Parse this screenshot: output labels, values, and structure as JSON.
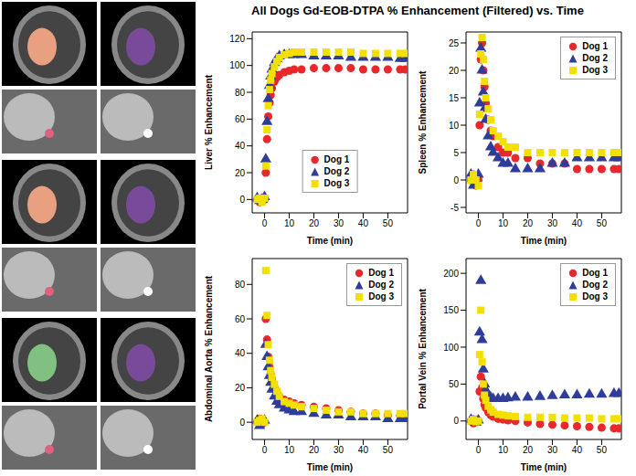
{
  "title": "All Dogs Gd-EOB-DTPA % Enhancement (Filtered) vs. Time",
  "chart_data": [
    {
      "type": "scatter",
      "ylabel": "Liver % Enhancement",
      "xlabel": "Time (min)",
      "legend": "lower center",
      "x": [
        -3,
        -2,
        -1,
        0,
        0.5,
        1,
        1.5,
        2,
        2.5,
        3,
        4,
        5,
        6,
        8,
        10,
        12,
        15,
        20,
        25,
        30,
        35,
        40,
        45,
        50,
        55,
        57
      ],
      "xlim": [
        -5,
        58
      ],
      "xticks": [
        0,
        10,
        20,
        30,
        40,
        50
      ],
      "ylim": [
        -10,
        125
      ],
      "yticks": [
        0,
        20,
        40,
        60,
        80,
        100,
        120
      ],
      "series": [
        {
          "name": "Dog 1",
          "color": "#e8282a",
          "marker": "circle",
          "values": [
            0,
            -2,
            1,
            0,
            20,
            45,
            62,
            72,
            78,
            83,
            88,
            91,
            93,
            95,
            96,
            97,
            97,
            98,
            98,
            98,
            98,
            97,
            97,
            97,
            97,
            97
          ]
        },
        {
          "name": "Dog 2",
          "color": "#2e3d9c",
          "marker": "triangle",
          "values": [
            1,
            -1,
            0,
            2,
            30,
            58,
            75,
            85,
            92,
            97,
            102,
            105,
            107,
            108,
            108,
            108,
            108,
            107,
            107,
            107,
            106,
            106,
            106,
            106,
            105,
            105
          ]
        },
        {
          "name": "Dog 3",
          "color": "#f2e000",
          "marker": "square",
          "values": [
            0,
            1,
            -2,
            1,
            25,
            52,
            70,
            82,
            89,
            94,
            99,
            103,
            106,
            108,
            109,
            110,
            110,
            110,
            110,
            110,
            110,
            109,
            109,
            109,
            109,
            109
          ]
        }
      ]
    },
    {
      "type": "scatter",
      "ylabel": "Spleen % Enhancement",
      "xlabel": "Time (min)",
      "legend": "upper right",
      "x": [
        -3,
        -2,
        -1,
        0,
        0.5,
        1,
        1.5,
        2,
        2.5,
        3,
        4,
        5,
        6,
        8,
        10,
        12,
        15,
        20,
        25,
        30,
        35,
        40,
        45,
        50,
        55,
        57
      ],
      "xlim": [
        -5,
        58
      ],
      "xticks": [
        0,
        10,
        20,
        30,
        40,
        50
      ],
      "ylim": [
        -6,
        27
      ],
      "yticks": [
        -5,
        0,
        5,
        10,
        15,
        20,
        25
      ],
      "series": [
        {
          "name": "Dog 1",
          "color": "#e8282a",
          "marker": "circle",
          "values": [
            0,
            1,
            -1,
            0,
            10,
            22,
            25,
            20,
            17,
            14,
            11,
            9,
            8,
            6,
            5,
            5,
            4,
            4,
            3,
            3,
            3,
            2,
            2,
            2,
            2,
            2
          ]
        },
        {
          "name": "Dog 2",
          "color": "#2e3d9c",
          "marker": "triangle",
          "values": [
            1,
            -1,
            0,
            1,
            14,
            24,
            20,
            16,
            13,
            11,
            8,
            6,
            5,
            4,
            3,
            3,
            2,
            2,
            2,
            3,
            3,
            4,
            4,
            4,
            4,
            4
          ]
        },
        {
          "name": "Dog 3",
          "color": "#f2e000",
          "marker": "square",
          "values": [
            0,
            1,
            0,
            -1,
            12,
            23,
            26,
            22,
            18,
            15,
            13,
            11,
            9,
            8,
            7,
            6,
            6,
            5,
            5,
            5,
            5,
            5,
            5,
            5,
            5,
            5
          ]
        }
      ]
    },
    {
      "type": "scatter",
      "ylabel": "Abdominal Aorta % Enhancement",
      "xlabel": "Time (min)",
      "legend": "upper right",
      "x": [
        -3,
        -2,
        -1,
        0,
        0.5,
        1,
        1.5,
        2,
        2.5,
        3,
        4,
        5,
        6,
        8,
        10,
        12,
        15,
        20,
        25,
        30,
        35,
        40,
        45,
        50,
        55,
        57
      ],
      "xlim": [
        -5,
        58
      ],
      "xticks": [
        0,
        10,
        20,
        30,
        40,
        50
      ],
      "ylim": [
        -10,
        95
      ],
      "yticks": [
        0,
        20,
        40,
        60,
        80
      ],
      "series": [
        {
          "name": "Dog 1",
          "color": "#e8282a",
          "marker": "circle",
          "values": [
            0,
            2,
            -1,
            0,
            60,
            48,
            38,
            32,
            28,
            25,
            20,
            17,
            15,
            13,
            12,
            11,
            10,
            9,
            8,
            7,
            6,
            5,
            5,
            4,
            4,
            4
          ]
        },
        {
          "name": "Dog 2",
          "color": "#2e3d9c",
          "marker": "triangle",
          "values": [
            1,
            -2,
            0,
            1,
            45,
            38,
            32,
            27,
            23,
            19,
            15,
            12,
            10,
            8,
            7,
            6,
            6,
            5,
            4,
            4,
            3,
            3,
            3,
            2,
            2,
            2
          ]
        },
        {
          "name": "Dog 3",
          "color": "#f2e000",
          "marker": "square",
          "values": [
            0,
            1,
            2,
            0,
            88,
            62,
            45,
            36,
            30,
            26,
            22,
            18,
            15,
            12,
            11,
            10,
            9,
            8,
            7,
            6,
            6,
            5,
            5,
            5,
            5,
            5
          ]
        }
      ]
    },
    {
      "type": "scatter",
      "ylabel": "Portal Vein % Enhancement",
      "xlabel": "Time (min)",
      "legend": "upper right",
      "x": [
        -3,
        -2,
        -1,
        0,
        0.5,
        1,
        1.5,
        2,
        2.5,
        3,
        4,
        5,
        6,
        8,
        10,
        12,
        15,
        20,
        25,
        30,
        35,
        40,
        45,
        50,
        55,
        57
      ],
      "xlim": [
        -5,
        58
      ],
      "xticks": [
        0,
        10,
        20,
        30,
        40,
        50
      ],
      "ylim": [
        -25,
        220
      ],
      "yticks": [
        0,
        50,
        100,
        150,
        200
      ],
      "series": [
        {
          "name": "Dog 1",
          "color": "#e8282a",
          "marker": "circle",
          "values": [
            0,
            -3,
            2,
            0,
            40,
            60,
            45,
            30,
            22,
            18,
            12,
            8,
            6,
            3,
            2,
            1,
            0,
            -2,
            -4,
            -5,
            -6,
            -7,
            -8,
            -9,
            -10,
            -10
          ]
        },
        {
          "name": "Dog 2",
          "color": "#2e3d9c",
          "marker": "triangle",
          "values": [
            2,
            0,
            -2,
            1,
            120,
            190,
            110,
            70,
            50,
            42,
            35,
            32,
            30,
            30,
            30,
            31,
            32,
            32,
            33,
            34,
            35,
            35,
            36,
            36,
            37,
            37
          ]
        },
        {
          "name": "Dog 3",
          "color": "#f2e000",
          "marker": "square",
          "values": [
            0,
            2,
            -1,
            0,
            90,
            150,
            80,
            50,
            35,
            28,
            20,
            15,
            12,
            9,
            8,
            7,
            6,
            5,
            5,
            5,
            4,
            4,
            4,
            3,
            3,
            3
          ]
        }
      ]
    }
  ]
}
